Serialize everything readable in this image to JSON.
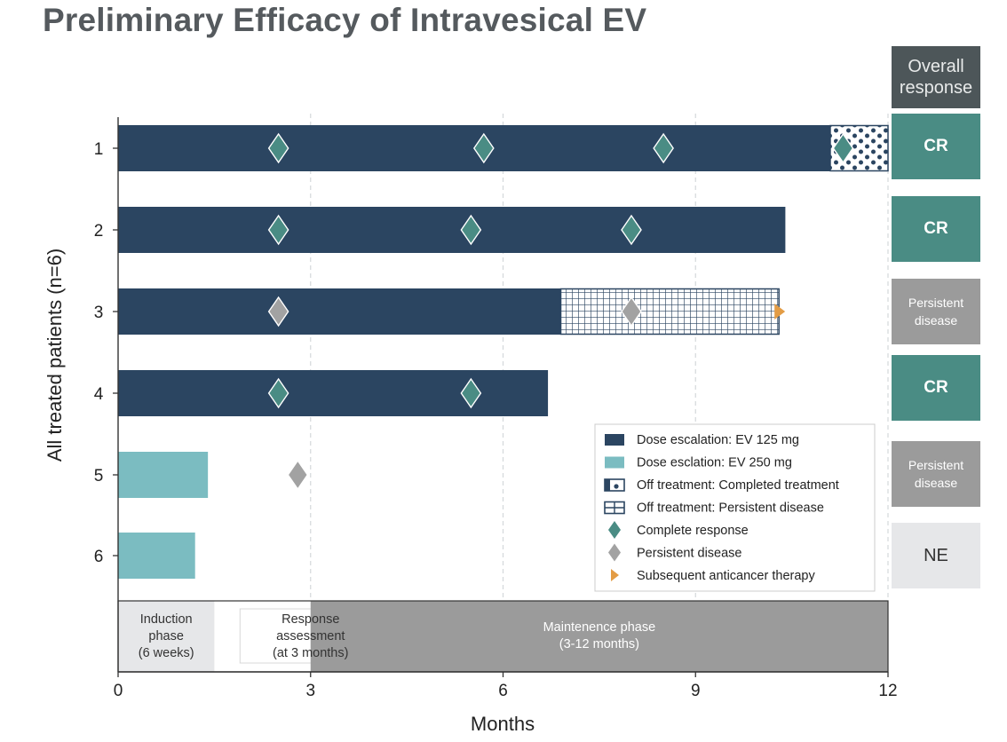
{
  "title": "Preliminary Efficacy of Intravesical EV",
  "colors": {
    "ev125": "#2b4561",
    "ev250": "#7bbcc1",
    "complete_response": "#4a8c84",
    "persistent_disease": "#a2a2a2",
    "subsequent_therapy": "#e39c45",
    "resp_cr": "#4a8c84",
    "resp_pd": "#9b9b9b",
    "resp_ne": "#e6e7e9",
    "header": "#4d5659"
  },
  "overall_response": {
    "header": "Overall response",
    "items": [
      {
        "patient": "1",
        "label": "CR",
        "type": "cr"
      },
      {
        "patient": "2",
        "label": "CR",
        "type": "cr"
      },
      {
        "patient": "3",
        "label": "Persistent disease",
        "type": "pd"
      },
      {
        "patient": "4",
        "label": "CR",
        "type": "cr"
      },
      {
        "patient": "5",
        "label": "Persistent disease",
        "type": "pd"
      },
      {
        "patient": "6",
        "label": "NE",
        "type": "ne"
      }
    ]
  },
  "chart_data": {
    "type": "swimmer",
    "xlabel": "Months",
    "ylabel": "All treated patients (n=6)",
    "xlim": [
      0,
      12
    ],
    "xticks": [
      0,
      3,
      6,
      9,
      12
    ],
    "gridlines_at": [
      3,
      6,
      9,
      12
    ],
    "patients": [
      {
        "id": "1",
        "treatment": {
          "arm": "ev125",
          "start": 0,
          "end": 11.1
        },
        "off_treatment": {
          "type": "completed",
          "start": 11.1,
          "end": 12.0
        },
        "events": [
          {
            "type": "complete_response",
            "month": 2.5
          },
          {
            "type": "complete_response",
            "month": 5.7
          },
          {
            "type": "complete_response",
            "month": 8.5
          },
          {
            "type": "complete_response",
            "month": 11.3
          }
        ]
      },
      {
        "id": "2",
        "treatment": {
          "arm": "ev125",
          "start": 0,
          "end": 10.4
        },
        "events": [
          {
            "type": "complete_response",
            "month": 2.5
          },
          {
            "type": "complete_response",
            "month": 5.5
          },
          {
            "type": "complete_response",
            "month": 8.0
          }
        ]
      },
      {
        "id": "3",
        "treatment": {
          "arm": "ev125",
          "start": 0,
          "end": 6.9
        },
        "off_treatment": {
          "type": "persistent",
          "start": 6.9,
          "end": 10.3
        },
        "events": [
          {
            "type": "persistent_disease",
            "month": 2.5
          },
          {
            "type": "persistent_disease",
            "month": 8.0
          },
          {
            "type": "subsequent_therapy",
            "month": 10.3
          }
        ]
      },
      {
        "id": "4",
        "treatment": {
          "arm": "ev125",
          "start": 0,
          "end": 6.7
        },
        "events": [
          {
            "type": "complete_response",
            "month": 2.5
          },
          {
            "type": "complete_response",
            "month": 5.5
          }
        ]
      },
      {
        "id": "5",
        "treatment": {
          "arm": "ev250",
          "start": 0,
          "end": 1.4
        },
        "events": [
          {
            "type": "persistent_disease",
            "month": 2.8
          }
        ]
      },
      {
        "id": "6",
        "treatment": {
          "arm": "ev250",
          "start": 0,
          "end": 1.2
        },
        "events": []
      }
    ],
    "phases": [
      {
        "label": "Induction phase (6 weeks)",
        "lines": [
          "Induction",
          "phase",
          "(6 weeks)"
        ],
        "start": 0,
        "end": 1.5,
        "style": "light"
      },
      {
        "label": "Response assessment (at 3 months)",
        "lines": [
          "Response",
          "assessment",
          "(at 3 months)"
        ],
        "start": 1.9,
        "end": 4.1,
        "style": "white"
      },
      {
        "label": "Maintenence phase (3-12 months)",
        "lines": [
          "Maintenence phase",
          "(3-12 months)"
        ],
        "start": 3,
        "end": 12,
        "style": "dark"
      }
    ],
    "legend": {
      "position": "inside-lower-right",
      "items": [
        {
          "key": "ev125",
          "label": "Dose escalation: EV 125 mg"
        },
        {
          "key": "ev250",
          "label": "Dose esclation: EV 250 mg"
        },
        {
          "key": "completed",
          "label": "Off treatment: Completed treatment"
        },
        {
          "key": "persistent",
          "label": "Off treatment: Persistent disease"
        },
        {
          "key": "complete_response",
          "label": "Complete response"
        },
        {
          "key": "persistent_disease",
          "label": "Persistent disease"
        },
        {
          "key": "subsequent_therapy",
          "label": "Subsequent anticancer therapy"
        }
      ]
    }
  }
}
